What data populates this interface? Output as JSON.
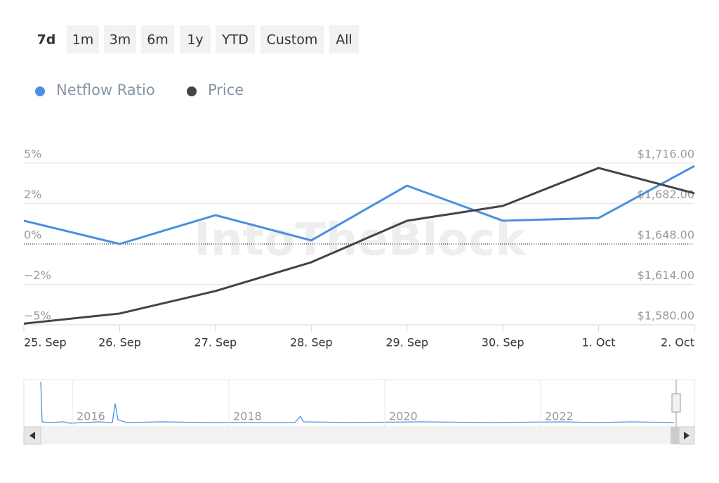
{
  "range_buttons": [
    "7d",
    "1m",
    "3m",
    "6m",
    "1y",
    "YTD",
    "Custom",
    "All"
  ],
  "chart_data": {
    "type": "line",
    "categories": [
      "25. Sep",
      "26. Sep",
      "27. Sep",
      "28. Sep",
      "29. Sep",
      "30. Sep",
      "1. Oct",
      "2. Oct"
    ],
    "series": [
      {
        "name": "Netflow Ratio",
        "color": "#4a8fe0",
        "values": [
          1.38,
          0,
          1.71,
          0.21,
          3.46,
          1.38,
          1.54,
          4.63
        ]
      },
      {
        "name": "Price",
        "color": "#434348",
        "axis": "y2",
        "values": [
          1581,
          1589.5,
          1608.4,
          1632.6,
          1667.5,
          1680,
          1711.9,
          1690.6
        ]
      }
    ],
    "ylim": [
      -4.8,
      4.8
    ],
    "yticks": [
      {
        "value": 4.8,
        "label": "5%"
      },
      {
        "value": 2.4,
        "label": "2%"
      },
      {
        "value": 0,
        "label": "0%"
      },
      {
        "value": -2.4,
        "label": "−2%"
      },
      {
        "value": -4.8,
        "label": "−5%"
      }
    ],
    "y2lim": [
      1580,
      1716
    ],
    "y2ticks": [
      {
        "value": 1716,
        "label": "$1,716.00"
      },
      {
        "value": 1682,
        "label": "$1,682.00"
      },
      {
        "value": 1648,
        "label": "$1,648.00"
      },
      {
        "value": 1614,
        "label": "$1,614.00"
      },
      {
        "value": 1580,
        "label": "$1,580.00"
      }
    ],
    "grid": true,
    "watermark": "IntoTheBlock",
    "navigator_labels": [
      "2016",
      "2018",
      "2020",
      "2022"
    ]
  }
}
